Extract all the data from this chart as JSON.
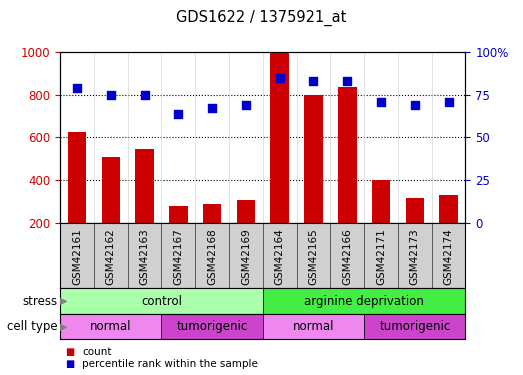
{
  "title": "GDS1622 / 1375921_at",
  "samples": [
    "GSM42161",
    "GSM42162",
    "GSM42163",
    "GSM42167",
    "GSM42168",
    "GSM42169",
    "GSM42164",
    "GSM42165",
    "GSM42166",
    "GSM42171",
    "GSM42173",
    "GSM42174"
  ],
  "count_values": [
    625,
    510,
    548,
    280,
    290,
    305,
    1000,
    800,
    835,
    400,
    315,
    332
  ],
  "percentile_values": [
    79,
    75,
    75,
    64,
    67,
    69,
    85,
    83,
    83,
    71,
    69,
    71
  ],
  "bar_color": "#cc0000",
  "dot_color": "#0000cc",
  "ylim_left": [
    200,
    1000
  ],
  "ylim_right": [
    0,
    100
  ],
  "yticks_left": [
    200,
    400,
    600,
    800,
    1000
  ],
  "ytick_labels_left": [
    "200",
    "400",
    "600",
    "800",
    "1000"
  ],
  "yticks_right": [
    0,
    25,
    50,
    75,
    100
  ],
  "ytick_labels_right": [
    "0",
    "25",
    "50",
    "75",
    "100%"
  ],
  "stress_groups": [
    {
      "label": "control",
      "start": 0,
      "end": 6,
      "color": "#aaffaa"
    },
    {
      "label": "arginine deprivation",
      "start": 6,
      "end": 12,
      "color": "#44ee44"
    }
  ],
  "celltype_groups": [
    {
      "label": "normal",
      "start": 0,
      "end": 3,
      "color": "#ee88ee"
    },
    {
      "label": "tumorigenic",
      "start": 3,
      "end": 6,
      "color": "#cc44cc"
    },
    {
      "label": "normal",
      "start": 6,
      "end": 9,
      "color": "#ee88ee"
    },
    {
      "label": "tumorigenic",
      "start": 9,
      "end": 12,
      "color": "#cc44cc"
    }
  ],
  "stress_label": "stress",
  "celltype_label": "cell type",
  "legend_count": "count",
  "legend_percentile": "percentile rank within the sample",
  "plot_bg_color": "#ffffff",
  "xlabels_bg_color": "#d0d0d0",
  "bar_width": 0.55,
  "dot_size": 40,
  "grid_yticks": [
    400,
    600,
    800
  ]
}
